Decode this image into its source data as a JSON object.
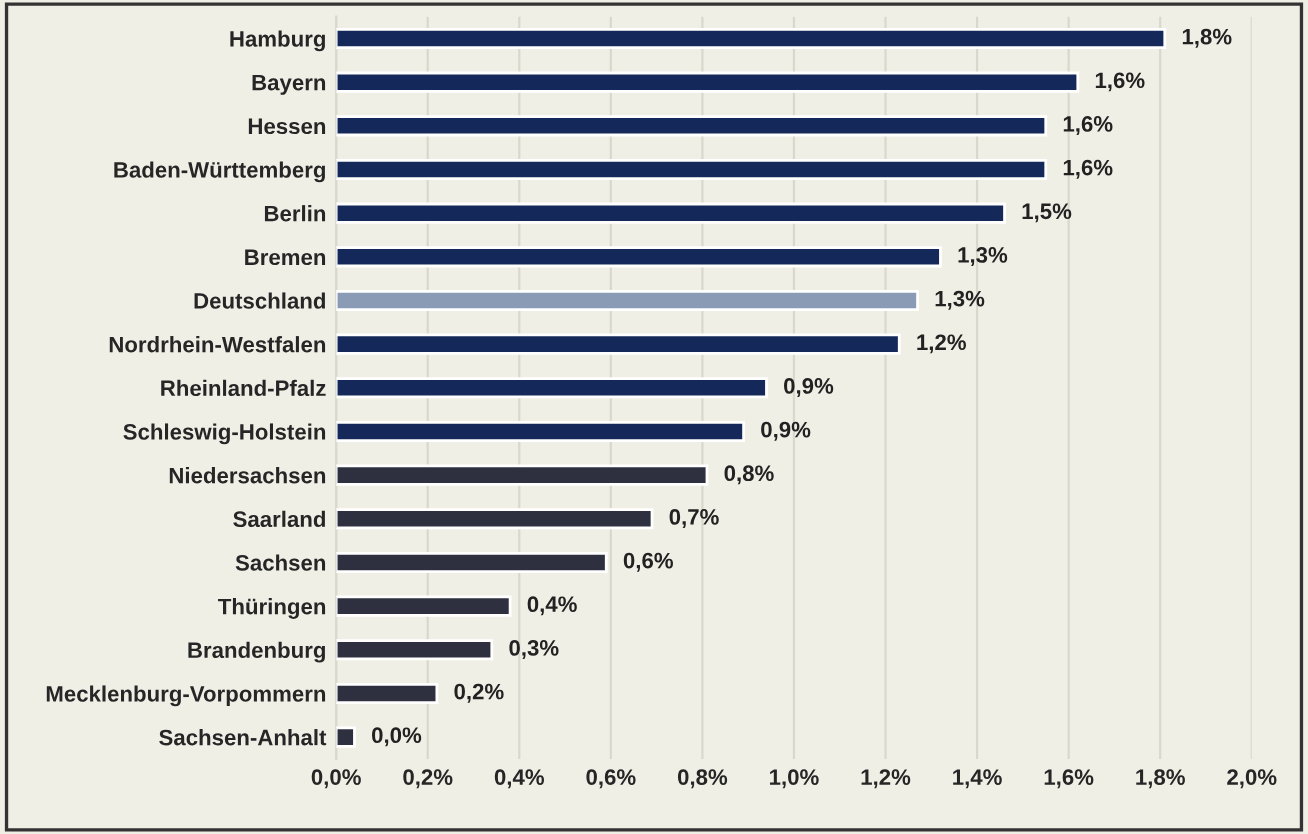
{
  "chart_data": {
    "type": "bar",
    "orientation": "horizontal",
    "categories": [
      "Hamburg",
      "Bayern",
      "Hessen",
      "Baden-Württemberg",
      "Berlin",
      "Bremen",
      "Deutschland",
      "Nordrhein-Westfalen",
      "Rheinland-Pfalz",
      "Schleswig-Holstein",
      "Niedersachsen",
      "Saarland",
      "Sachsen",
      "Thüringen",
      "Brandenburg",
      "Mecklenburg-Vorpommern",
      "Sachsen-Anhalt"
    ],
    "values": [
      1.81,
      1.62,
      1.55,
      1.55,
      1.46,
      1.32,
      1.27,
      1.23,
      0.94,
      0.89,
      0.81,
      0.69,
      0.59,
      0.38,
      0.34,
      0.22,
      0.04
    ],
    "value_labels": [
      "1,8%",
      "1,6%",
      "1,6%",
      "1,6%",
      "1,5%",
      "1,3%",
      "1,3%",
      "1,2%",
      "0,9%",
      "0,9%",
      "0,8%",
      "0,7%",
      "0,6%",
      "0,4%",
      "0,3%",
      "0,2%",
      "0,0%"
    ],
    "colors": [
      "#14295a",
      "#14295a",
      "#14295a",
      "#14295a",
      "#14295a",
      "#14295a",
      "#8a9bb6",
      "#14295a",
      "#14295a",
      "#14295a",
      "#2e3040",
      "#2e3040",
      "#2e3040",
      "#2e3040",
      "#2e3040",
      "#2e3040",
      "#2e3040"
    ],
    "xlim": [
      0,
      2.0
    ],
    "xticks": [
      {
        "value": 0,
        "label": "0,0%"
      },
      {
        "value": 0.2,
        "label": "0,2%"
      },
      {
        "value": 0.4,
        "label": "0,4%"
      },
      {
        "value": 0.6,
        "label": "0,6%"
      },
      {
        "value": 0.8,
        "label": "0,8%"
      },
      {
        "value": 1.0,
        "label": "1,0%"
      },
      {
        "value": 1.2,
        "label": "1,2%"
      },
      {
        "value": 1.4,
        "label": "1,4%"
      },
      {
        "value": 1.6,
        "label": "1,6%"
      },
      {
        "value": 1.8,
        "label": "1,8%"
      },
      {
        "value": 2.0,
        "label": "2,0%"
      }
    ],
    "grid": "x",
    "legend": false
  }
}
